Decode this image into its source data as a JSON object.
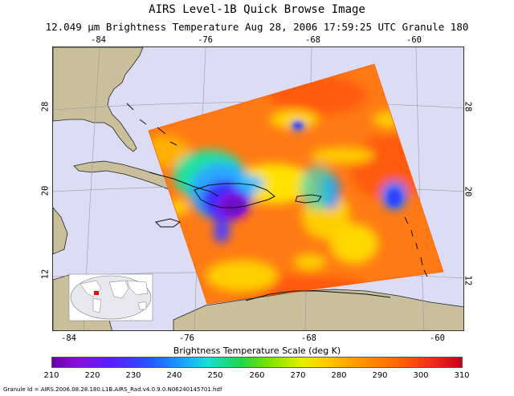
{
  "header": {
    "title": "AIRS Level-1B Quick Browse Image",
    "subtitle": "12.049 μm Brightness Temperature   Aug 28, 2006 17:59:25 UTC   Granule 180"
  },
  "map": {
    "top_lon_labels": [
      "-84",
      "-76",
      "-68",
      "-60"
    ],
    "bottom_lon_labels": [
      "-84",
      "-76",
      "-68",
      "-60"
    ],
    "left_lat_labels": [
      "28",
      "20",
      "12"
    ],
    "right_lat_labels": [
      "28",
      "20",
      "12"
    ],
    "colors": {
      "ocean": "#dcdcf4",
      "land": "#c9bf9a",
      "coast": "#111111"
    }
  },
  "legend": {
    "label": "Brightness Temperature Scale (deg K)",
    "ticks": [
      "210",
      "220",
      "230",
      "240",
      "250",
      "260",
      "270",
      "280",
      "290",
      "300",
      "310"
    ]
  },
  "footer": {
    "granule_id": "Granule Id = AIRS.2006.08.28.180.L1B.AIRS_Rad.v4.0.9.0.N06240145701.hdf"
  }
}
